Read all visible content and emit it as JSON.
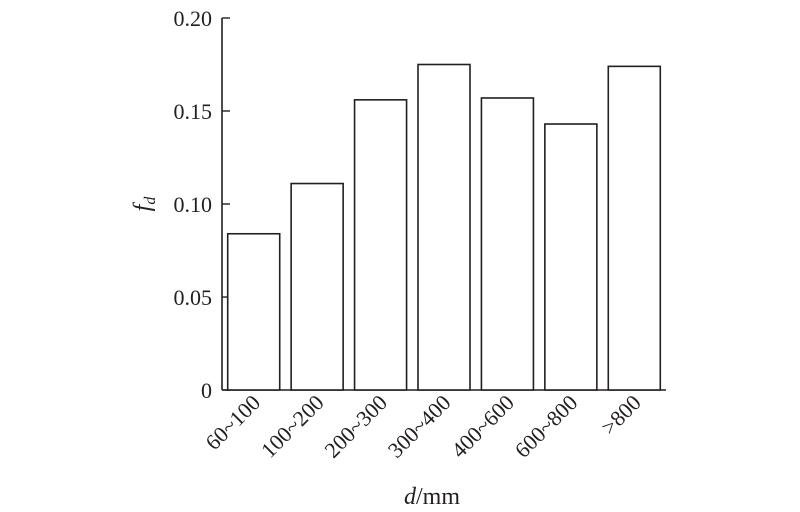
{
  "chart_data": {
    "type": "bar",
    "categories": [
      "60~100",
      "100~200",
      "200~300",
      "300~400",
      "400~600",
      "600~800",
      ">800"
    ],
    "values": [
      0.084,
      0.111,
      0.156,
      0.175,
      0.157,
      0.143,
      0.174
    ],
    "ylabel": {
      "main": "f",
      "sub": "d"
    },
    "xlabel": {
      "italic": "d",
      "unit": "/mm"
    },
    "ylim": [
      0,
      0.2
    ],
    "yticks": [
      0,
      0.05,
      0.1,
      0.15,
      0.2
    ],
    "ytick_labels": [
      "0",
      "0.05",
      "0.10",
      "0.15",
      "0.20"
    ],
    "grid": false,
    "bar_fill": "#ffffff",
    "stroke_color": "#231f20"
  }
}
